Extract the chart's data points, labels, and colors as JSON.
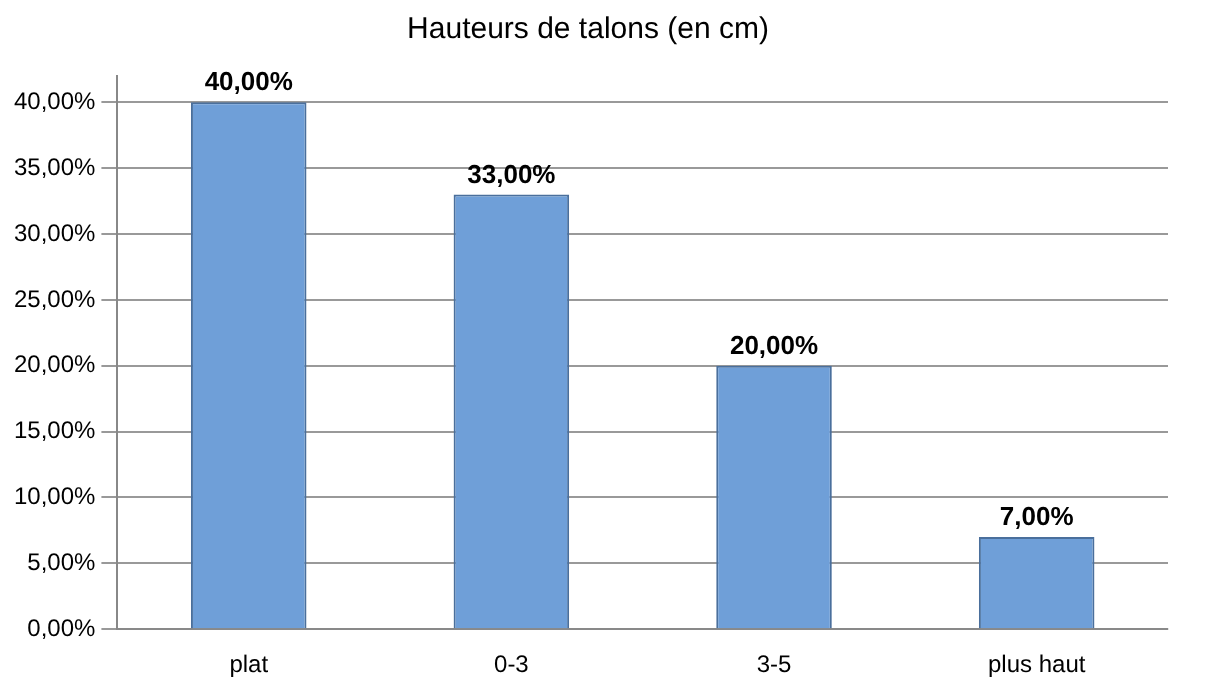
{
  "chart_data": {
    "type": "bar",
    "title": "Hauteurs de talons (en cm)",
    "categories": [
      "plat",
      "0-3",
      "3-5",
      "plus haut"
    ],
    "values": [
      40,
      33,
      20,
      7
    ],
    "value_labels": [
      "40,00%",
      "33,00%",
      "20,00%",
      "7,00%"
    ],
    "color": "#6f9fd8",
    "ylim": [
      0,
      42
    ],
    "yticks": [
      {
        "value": 0,
        "label": "0,00%"
      },
      {
        "value": 5,
        "label": "5,00%"
      },
      {
        "value": 10,
        "label": "10,00%"
      },
      {
        "value": 15,
        "label": "15,00%"
      },
      {
        "value": 20,
        "label": "20,00%"
      },
      {
        "value": 25,
        "label": "25,00%"
      },
      {
        "value": 30,
        "label": "30,00%"
      },
      {
        "value": 35,
        "label": "35,00%"
      },
      {
        "value": 40,
        "label": "40,00%"
      }
    ],
    "grid": "y"
  }
}
